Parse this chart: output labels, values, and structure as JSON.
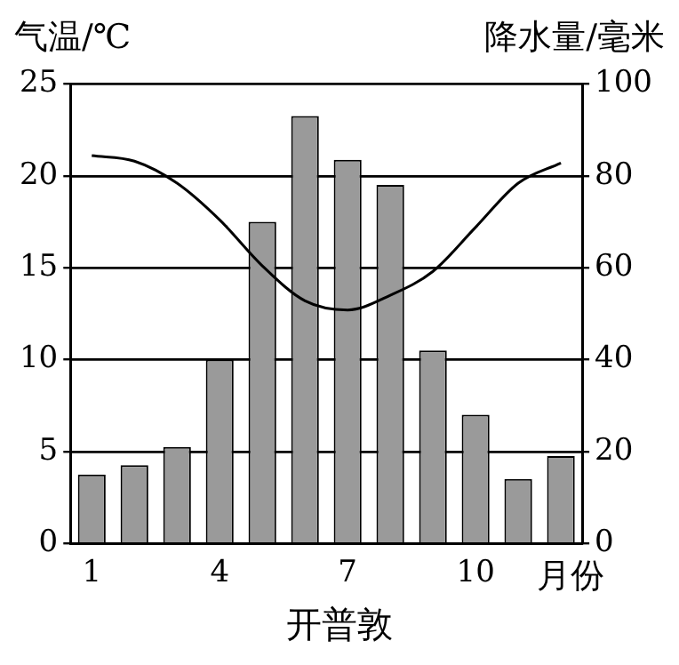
{
  "chart_data": {
    "type": "bar",
    "title": "开普敦",
    "xlabel": "月份",
    "ylabel": "气温/℃",
    "y2label": "降水量/毫米",
    "categories": [
      "1",
      null,
      null,
      "4",
      null,
      null,
      "7",
      null,
      null,
      "10",
      null,
      null
    ],
    "series": [
      {
        "axis": "y2",
        "color": "#9a9a9a",
        "values": [
          15,
          17,
          21,
          40,
          70,
          93,
          83.5,
          78,
          42,
          28,
          14,
          19
        ]
      },
      {
        "type": "line",
        "axis": "y",
        "color": "#000000",
        "marker": "none",
        "values": [
          21.1,
          20.8,
          19.6,
          17.6,
          15.1,
          13.2,
          12.7,
          13.5,
          14.8,
          17.2,
          19.6,
          20.7
        ]
      }
    ],
    "ylim": [
      0,
      25
    ],
    "yticks": [
      0,
      5,
      10,
      15,
      20,
      25
    ],
    "y2lim": [
      0,
      100
    ],
    "y2ticks": [
      0,
      20,
      40,
      60,
      80,
      100
    ],
    "grid": "y",
    "legend": false
  }
}
